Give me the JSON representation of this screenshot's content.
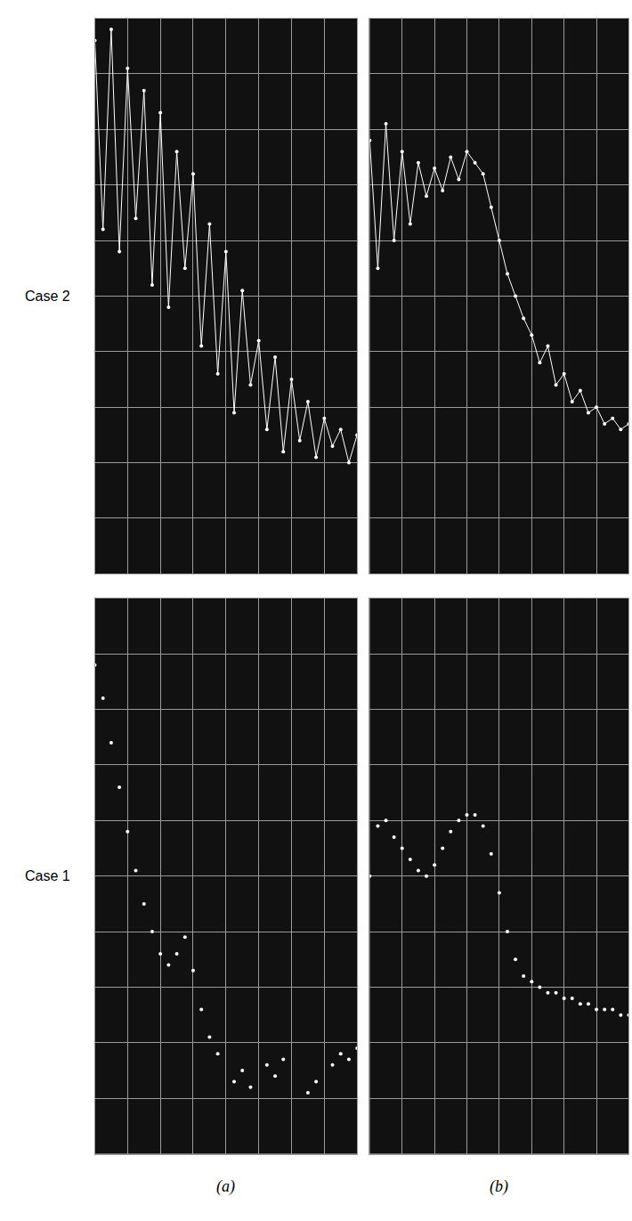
{
  "row_labels": [
    "Case 2",
    "Case 1"
  ],
  "panel_labels": [
    "(a)",
    "(b)"
  ],
  "chart_data": [
    {
      "type": "line",
      "marker": "circle",
      "color": "#ffffff",
      "grid": true,
      "tick_labels": false,
      "xlim": [
        0,
        8
      ],
      "ylim": [
        0,
        10
      ],
      "xticks": [
        0,
        1,
        2,
        3,
        4,
        5,
        6,
        7,
        8
      ],
      "yticks": [
        0,
        1,
        2,
        3,
        4,
        5,
        6,
        7,
        8,
        9,
        10
      ],
      "x": [
        0,
        0.25,
        0.5,
        0.75,
        1,
        1.25,
        1.5,
        1.75,
        2,
        2.25,
        2.5,
        2.75,
        3,
        3.25,
        3.5,
        3.75,
        4,
        4.25,
        4.5,
        4.75,
        5,
        5.25,
        5.5,
        5.75,
        6,
        6.25,
        6.5,
        6.75,
        7,
        7.25,
        7.5,
        7.75,
        8
      ],
      "values": [
        9.6,
        6.2,
        9.8,
        5.8,
        9.1,
        6.4,
        8.7,
        5.2,
        8.3,
        4.8,
        7.6,
        5.5,
        7.2,
        4.1,
        6.3,
        3.6,
        5.8,
        2.9,
        5.1,
        3.4,
        4.2,
        2.6,
        3.9,
        2.2,
        3.5,
        2.4,
        3.1,
        2.1,
        2.8,
        2.3,
        2.6,
        2.0,
        2.5
      ]
    },
    {
      "type": "scatter",
      "marker": "circle",
      "color": "#ffffff",
      "grid": true,
      "tick_labels": false,
      "xlim": [
        0,
        8
      ],
      "ylim": [
        0,
        10
      ],
      "xticks": [
        0,
        1,
        2,
        3,
        4,
        5,
        6,
        7,
        8
      ],
      "yticks": [
        0,
        1,
        2,
        3,
        4,
        5,
        6,
        7,
        8,
        9,
        10
      ],
      "x": [
        0,
        0.25,
        0.5,
        0.75,
        1,
        1.25,
        1.5,
        1.75,
        2,
        2.25,
        2.5,
        2.75,
        3,
        3.25,
        3.5,
        3.75,
        4,
        4.25,
        4.5,
        4.75,
        5,
        5.25,
        5.5,
        5.75,
        6,
        6.25,
        6.5,
        6.75,
        7,
        7.25,
        7.5,
        7.75,
        8
      ],
      "values": [
        8.8,
        8.2,
        7.4,
        6.6,
        5.8,
        5.1,
        4.5,
        4.0,
        3.6,
        3.4,
        3.6,
        3.9,
        3.3,
        2.6,
        2.1,
        1.8,
        null,
        1.3,
        1.5,
        1.2,
        null,
        1.6,
        1.4,
        1.7,
        null,
        null,
        1.1,
        1.3,
        null,
        1.6,
        1.8,
        1.7,
        1.9
      ]
    },
    {
      "type": "line",
      "marker": "circle",
      "color": "#ffffff",
      "grid": true,
      "tick_labels": false,
      "xlim": [
        0,
        8
      ],
      "ylim": [
        0,
        10
      ],
      "xticks": [
        0,
        1,
        2,
        3,
        4,
        5,
        6,
        7,
        8
      ],
      "yticks": [
        0,
        1,
        2,
        3,
        4,
        5,
        6,
        7,
        8,
        9,
        10
      ],
      "x": [
        0,
        0.25,
        0.5,
        0.75,
        1,
        1.25,
        1.5,
        1.75,
        2,
        2.25,
        2.5,
        2.75,
        3,
        3.25,
        3.5,
        3.75,
        4,
        4.25,
        4.5,
        4.75,
        5,
        5.25,
        5.5,
        5.75,
        6,
        6.25,
        6.5,
        6.75,
        7,
        7.25,
        7.5,
        7.75,
        8
      ],
      "values": [
        7.8,
        5.5,
        8.1,
        6.0,
        7.6,
        6.3,
        7.4,
        6.8,
        7.3,
        6.9,
        7.5,
        7.1,
        7.6,
        7.4,
        7.2,
        6.6,
        6.0,
        5.4,
        5.0,
        4.6,
        4.3,
        3.8,
        4.1,
        3.4,
        3.6,
        3.1,
        3.3,
        2.9,
        3.0,
        2.7,
        2.8,
        2.6,
        2.7
      ]
    },
    {
      "type": "scatter",
      "marker": "circle",
      "color": "#ffffff",
      "grid": true,
      "tick_labels": false,
      "xlim": [
        0,
        8
      ],
      "ylim": [
        0,
        10
      ],
      "xticks": [
        0,
        1,
        2,
        3,
        4,
        5,
        6,
        7,
        8
      ],
      "yticks": [
        0,
        1,
        2,
        3,
        4,
        5,
        6,
        7,
        8,
        9,
        10
      ],
      "x": [
        0,
        0.25,
        0.5,
        0.75,
        1,
        1.25,
        1.5,
        1.75,
        2,
        2.25,
        2.5,
        2.75,
        3,
        3.25,
        3.5,
        3.75,
        4,
        4.25,
        4.5,
        4.75,
        5,
        5.25,
        5.5,
        5.75,
        6,
        6.25,
        6.5,
        6.75,
        7,
        7.25,
        7.5,
        7.75,
        8
      ],
      "values": [
        5.0,
        5.9,
        6.0,
        5.7,
        5.5,
        5.3,
        5.1,
        5.0,
        5.2,
        5.5,
        5.8,
        6.0,
        6.1,
        6.1,
        5.9,
        5.4,
        4.7,
        4.0,
        3.5,
        3.2,
        3.1,
        3.0,
        2.9,
        2.9,
        2.8,
        2.8,
        2.7,
        2.7,
        2.6,
        2.6,
        2.6,
        2.5,
        2.5
      ]
    }
  ]
}
